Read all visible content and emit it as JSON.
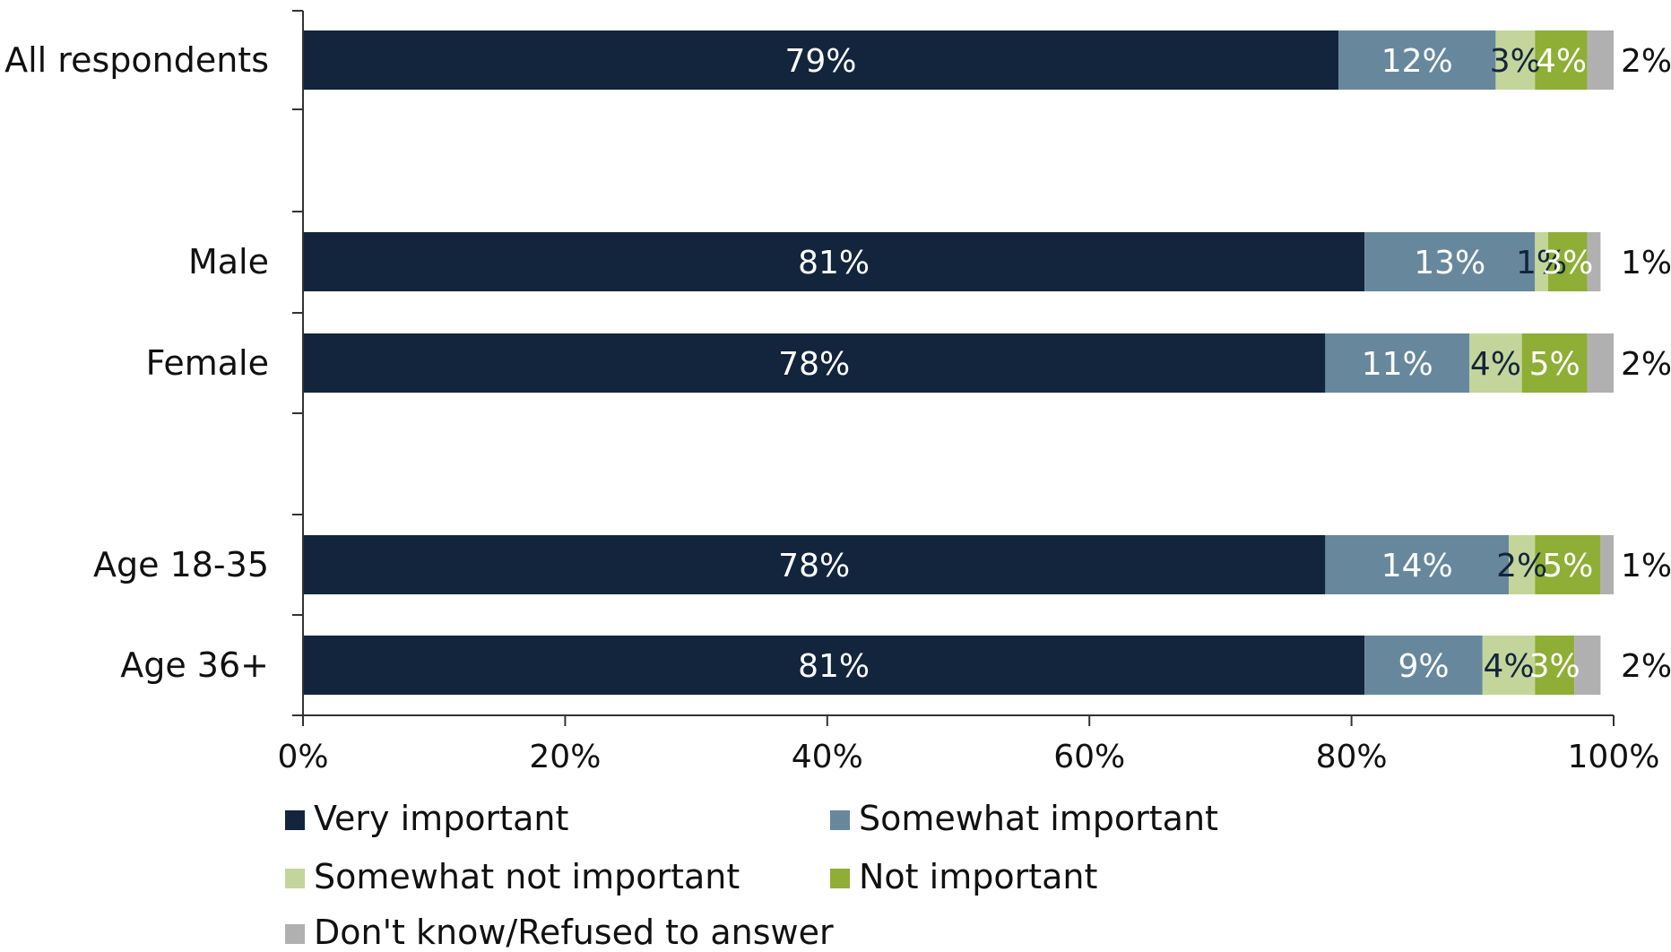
{
  "chart_data": {
    "type": "bar",
    "orientation": "horizontal",
    "stacked": true,
    "title": "",
    "xlabel": "",
    "ylabel": "",
    "xlim": [
      0,
      100
    ],
    "x_ticks": [
      "0%",
      "20%",
      "40%",
      "60%",
      "80%",
      "100%"
    ],
    "grid": false,
    "legend_position": "bottom",
    "categories": [
      "All respondents",
      "Male",
      "Female",
      "Age 18-35",
      "Age 36+"
    ],
    "series": [
      {
        "name": "Very important",
        "color": "#13253d",
        "label_color": "#ffffff",
        "values": [
          79,
          81,
          78,
          78,
          81
        ],
        "labels": [
          "79%",
          "81%",
          "78%",
          "78%",
          "81%"
        ]
      },
      {
        "name": "Somewhat important",
        "color": "#67889c",
        "label_color": "#ffffff",
        "values": [
          12,
          13,
          11,
          14,
          9
        ],
        "labels": [
          "12%",
          "13%",
          "11%",
          "14%",
          "9%"
        ]
      },
      {
        "name": "Somewhat not important",
        "color": "#c3d59a",
        "label_color": "#13253d",
        "values": [
          3,
          1,
          4,
          2,
          4
        ],
        "labels": [
          "3%",
          "1%",
          "4%",
          "2%",
          "4%"
        ]
      },
      {
        "name": "Not important",
        "color": "#8eae35",
        "label_color": "#ffffff",
        "values": [
          4,
          3,
          5,
          5,
          3
        ],
        "labels": [
          "4%",
          "3%",
          "5%",
          "5%",
          "3%"
        ]
      },
      {
        "name": "Don't know/Refused to answer",
        "color": "#b0b0b0",
        "label_color": "#111111",
        "values": [
          2,
          1,
          2,
          1,
          2
        ],
        "labels": [
          "2%",
          "1%",
          "2%",
          "1%",
          "2%"
        ]
      }
    ]
  }
}
